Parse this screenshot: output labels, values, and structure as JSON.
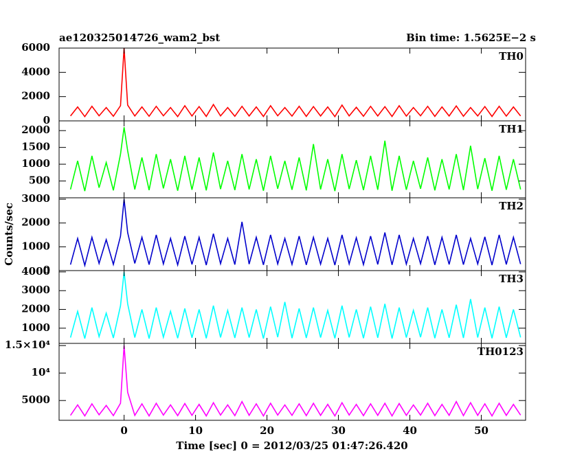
{
  "header": {
    "title": "ae120325014726_wam2_bst",
    "bin_time": "Bin time: 1.5625E−2 s",
    "xlabel": "Time [sec] 0 = 2012/03/25 01:47:26.420",
    "ylabel": "Counts/sec"
  },
  "chart_data": [
    {
      "type": "line",
      "label": "TH0",
      "color": "#ff0000",
      "xlim": [
        -9.1,
        56.2
      ],
      "xticks": [
        0,
        10,
        20,
        30,
        40,
        50
      ],
      "ylim": [
        0,
        6000
      ],
      "yticks": [
        0,
        2000,
        4000,
        6000
      ],
      "x": [
        -7.5,
        -6.5,
        -5.5,
        -4.5,
        -3.5,
        -2.5,
        -1.5,
        -0.5,
        0,
        0.5,
        1.5,
        2.5,
        3.5,
        4.5,
        5.5,
        6.5,
        7.5,
        8.5,
        9.5,
        10.5,
        11.5,
        12.5,
        13.5,
        14.5,
        15.5,
        16.5,
        17.5,
        18.5,
        19.5,
        20.5,
        21.5,
        22.5,
        23.5,
        24.5,
        25.5,
        26.5,
        27.5,
        28.5,
        29.5,
        30.5,
        31.5,
        32.5,
        33.5,
        34.5,
        35.5,
        36.5,
        37.5,
        38.5,
        39.5,
        40.5,
        41.5,
        42.5,
        43.5,
        44.5,
        45.5,
        46.5,
        47.5,
        48.5,
        49.5,
        50.5,
        51.5,
        52.5,
        53.5,
        54.5,
        55.5
      ],
      "values": [
        400,
        1150,
        350,
        1200,
        420,
        1100,
        380,
        1250,
        6000,
        1300,
        400,
        1150,
        380,
        1200,
        420,
        1100,
        350,
        1250,
        400,
        1180,
        370,
        1350,
        410,
        1100,
        380,
        1200,
        400,
        1150,
        360,
        1250,
        420,
        1100,
        390,
        1200,
        370,
        1180,
        400,
        1150,
        350,
        1300,
        410,
        1120,
        380,
        1200,
        400,
        1170,
        360,
        1250,
        390,
        1100,
        420,
        1200,
        370,
        1150,
        400,
        1230,
        380,
        1100,
        410,
        1180,
        360,
        1200,
        390,
        1150,
        400
      ]
    },
    {
      "type": "line",
      "label": "TH1",
      "color": "#00ff00",
      "xlim": [
        -9.1,
        56.2
      ],
      "xticks": [
        0,
        10,
        20,
        30,
        40,
        50
      ],
      "ylim": [
        0,
        2290
      ],
      "yticks": [
        500,
        1000,
        1500,
        2000
      ],
      "x": [
        -7.5,
        -6.5,
        -5.5,
        -4.5,
        -3.5,
        -2.5,
        -1.5,
        -0.5,
        0,
        0.5,
        1.5,
        2.5,
        3.5,
        4.5,
        5.5,
        6.5,
        7.5,
        8.5,
        9.5,
        10.5,
        11.5,
        12.5,
        13.5,
        14.5,
        15.5,
        16.5,
        17.5,
        18.5,
        19.5,
        20.5,
        21.5,
        22.5,
        23.5,
        24.5,
        25.5,
        26.5,
        27.5,
        28.5,
        29.5,
        30.5,
        31.5,
        32.5,
        33.5,
        34.5,
        35.5,
        36.5,
        37.5,
        38.5,
        39.5,
        40.5,
        41.5,
        42.5,
        43.5,
        44.5,
        45.5,
        46.5,
        47.5,
        48.5,
        49.5,
        50.5,
        51.5,
        52.5,
        53.5,
        54.5,
        55.5
      ],
      "values": [
        250,
        1100,
        200,
        1250,
        300,
        1050,
        220,
        1300,
        2100,
        1400,
        250,
        1200,
        230,
        1300,
        280,
        1150,
        210,
        1250,
        240,
        1200,
        220,
        1350,
        260,
        1100,
        230,
        1300,
        250,
        1150,
        210,
        1250,
        270,
        1100,
        240,
        1200,
        220,
        1600,
        250,
        1150,
        200,
        1300,
        260,
        1120,
        230,
        1250,
        240,
        1700,
        210,
        1250,
        240,
        1100,
        270,
        1200,
        220,
        1150,
        250,
        1300,
        230,
        1550,
        260,
        1180,
        210,
        1250,
        240,
        1150,
        250
      ]
    },
    {
      "type": "line",
      "label": "TH2",
      "color": "#0000cc",
      "xlim": [
        -9.1,
        56.2
      ],
      "xticks": [
        0,
        10,
        20,
        30,
        40,
        50
      ],
      "ylim": [
        0,
        3060
      ],
      "yticks": [
        0,
        1000,
        2000,
        3000
      ],
      "x": [
        -7.5,
        -6.5,
        -5.5,
        -4.5,
        -3.5,
        -2.5,
        -1.5,
        -0.5,
        0,
        0.5,
        1.5,
        2.5,
        3.5,
        4.5,
        5.5,
        6.5,
        7.5,
        8.5,
        9.5,
        10.5,
        11.5,
        12.5,
        13.5,
        14.5,
        15.5,
        16.5,
        17.5,
        18.5,
        19.5,
        20.5,
        21.5,
        22.5,
        23.5,
        24.5,
        25.5,
        26.5,
        27.5,
        28.5,
        29.5,
        30.5,
        31.5,
        32.5,
        33.5,
        34.5,
        35.5,
        36.5,
        37.5,
        38.5,
        39.5,
        40.5,
        41.5,
        42.5,
        43.5,
        44.5,
        45.5,
        46.5,
        47.5,
        48.5,
        49.5,
        50.5,
        51.5,
        52.5,
        53.5,
        54.5,
        55.5
      ],
      "values": [
        250,
        1350,
        220,
        1400,
        300,
        1300,
        260,
        1450,
        3000,
        1600,
        300,
        1400,
        250,
        1500,
        280,
        1350,
        240,
        1450,
        260,
        1400,
        230,
        1550,
        290,
        1350,
        250,
        2050,
        270,
        1400,
        240,
        1500,
        280,
        1350,
        260,
        1450,
        240,
        1400,
        270,
        1350,
        230,
        1500,
        280,
        1380,
        250,
        1450,
        260,
        1600,
        240,
        1500,
        270,
        1350,
        290,
        1450,
        240,
        1400,
        260,
        1500,
        250,
        1350,
        280,
        1420,
        230,
        1500,
        260,
        1400,
        270
      ]
    },
    {
      "type": "line",
      "label": "TH3",
      "color": "#00ffff",
      "xlim": [
        -9.1,
        56.2
      ],
      "xticks": [
        0,
        10,
        20,
        30,
        40,
        50
      ],
      "ylim": [
        190,
        4070
      ],
      "yticks": [
        1000,
        2000,
        3000,
        4000
      ],
      "x": [
        -7.5,
        -6.5,
        -5.5,
        -4.5,
        -3.5,
        -2.5,
        -1.5,
        -0.5,
        0,
        0.5,
        1.5,
        2.5,
        3.5,
        4.5,
        5.5,
        6.5,
        7.5,
        8.5,
        9.5,
        10.5,
        11.5,
        12.5,
        13.5,
        14.5,
        15.5,
        16.5,
        17.5,
        18.5,
        19.5,
        20.5,
        21.5,
        22.5,
        23.5,
        24.5,
        25.5,
        26.5,
        27.5,
        28.5,
        29.5,
        30.5,
        31.5,
        32.5,
        33.5,
        34.5,
        35.5,
        36.5,
        37.5,
        38.5,
        39.5,
        40.5,
        41.5,
        42.5,
        43.5,
        44.5,
        45.5,
        46.5,
        47.5,
        48.5,
        49.5,
        50.5,
        51.5,
        52.5,
        53.5,
        54.5,
        55.5
      ],
      "values": [
        500,
        1900,
        450,
        2100,
        550,
        1800,
        480,
        2200,
        4000,
        2300,
        500,
        2000,
        450,
        2100,
        520,
        1900,
        470,
        2050,
        490,
        2000,
        460,
        2200,
        510,
        1950,
        480,
        2100,
        500,
        2000,
        450,
        2150,
        520,
        2400,
        470,
        2050,
        480,
        2100,
        500,
        1950,
        460,
        2200,
        510,
        2000,
        470,
        2150,
        490,
        2300,
        450,
        2100,
        500,
        1950,
        520,
        2100,
        470,
        2000,
        490,
        2250,
        480,
        2550,
        500,
        2100,
        460,
        2150,
        490,
        2000,
        510
      ]
    },
    {
      "type": "line",
      "label": "TH0123",
      "color": "#ff00ff",
      "xlim": [
        -9.1,
        56.2
      ],
      "xticks": [
        0,
        10,
        20,
        30,
        40,
        50
      ],
      "ylim": [
        1400,
        15400
      ],
      "yticks": [
        5000,
        {
          "value": 10000,
          "label": "10⁴"
        },
        {
          "value": 15000,
          "label": "1.5×10⁴"
        }
      ],
      "x": [
        -7.5,
        -6.5,
        -5.5,
        -4.5,
        -3.5,
        -2.5,
        -1.5,
        -0.5,
        0,
        0.5,
        1.5,
        2.5,
        3.5,
        4.5,
        5.5,
        6.5,
        7.5,
        8.5,
        9.5,
        10.5,
        11.5,
        12.5,
        13.5,
        14.5,
        15.5,
        16.5,
        17.5,
        18.5,
        19.5,
        20.5,
        21.5,
        22.5,
        23.5,
        24.5,
        25.5,
        26.5,
        27.5,
        28.5,
        29.5,
        30.5,
        31.5,
        32.5,
        33.5,
        34.5,
        35.5,
        36.5,
        37.5,
        38.5,
        39.5,
        40.5,
        41.5,
        42.5,
        43.5,
        44.5,
        45.5,
        46.5,
        47.5,
        48.5,
        49.5,
        50.5,
        51.5,
        52.5,
        53.5,
        54.5,
        55.5
      ],
      "values": [
        2300,
        4200,
        2200,
        4400,
        2400,
        4100,
        2250,
        4500,
        15000,
        6500,
        2300,
        4400,
        2200,
        4500,
        2350,
        4200,
        2250,
        4450,
        2300,
        4300,
        2200,
        4600,
        2350,
        4200,
        2250,
        4800,
        2300,
        4400,
        2200,
        4500,
        2350,
        4200,
        2300,
        4400,
        2250,
        4500,
        2300,
        4300,
        2200,
        4600,
        2350,
        4300,
        2250,
        4400,
        2300,
        4500,
        2200,
        4450,
        2300,
        4200,
        2350,
        4500,
        2250,
        4300,
        2300,
        4800,
        2250,
        4600,
        2300,
        4400,
        2200,
        4500,
        2300,
        4300,
        2350
      ]
    }
  ]
}
